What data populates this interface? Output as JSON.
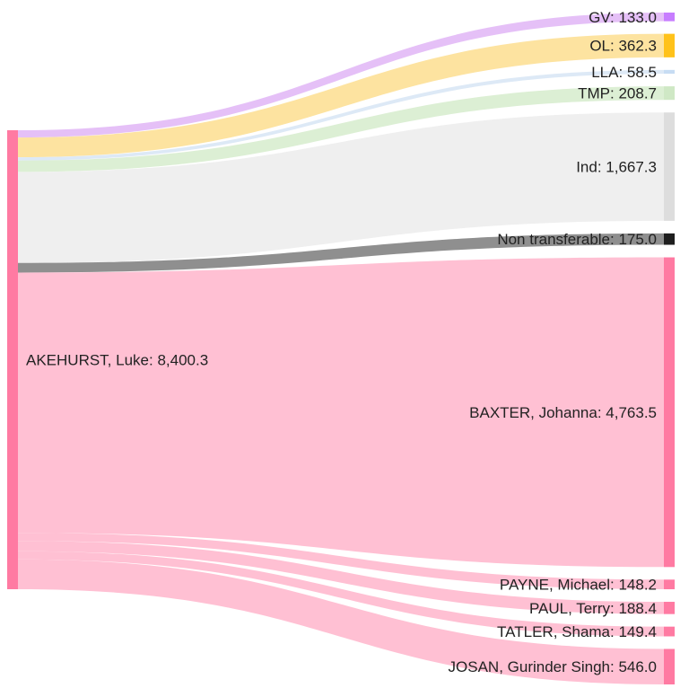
{
  "chart_data": {
    "type": "sankey",
    "title": "",
    "source": {
      "name": "AKEHURST, Luke",
      "value": 8400.3,
      "label": "AKEHURST, Luke: 8,400.3",
      "color": "#ff7aa2"
    },
    "targets": [
      {
        "name": "GV",
        "value": 133.0,
        "label": "GV: 133.0",
        "node_color": "#c77dff",
        "flow_color": "#e5c0f7"
      },
      {
        "name": "OL",
        "value": 362.3,
        "label": "OL: 362.3",
        "node_color": "#ffc21a",
        "flow_color": "#fde3a0"
      },
      {
        "name": "LLA",
        "value": 58.5,
        "label": "LLA: 58.5",
        "node_color": "#c7dcf3",
        "flow_color": "#dde9f6"
      },
      {
        "name": "TMP",
        "value": 208.7,
        "label": "TMP: 208.7",
        "node_color": "#cfe8c5",
        "flow_color": "#dcefd4"
      },
      {
        "name": "Ind",
        "value": 1667.3,
        "label": "Ind: 1,667.3",
        "node_color": "#dddddd",
        "flow_color": "#efefef"
      },
      {
        "name": "Non transferable",
        "value": 175.0,
        "label": "Non transferable: 175.0",
        "node_color": "#1e1e1e",
        "flow_color": "#8f8f8f"
      },
      {
        "name": "BAXTER, Johanna",
        "value": 4763.5,
        "label": "BAXTER, Johanna: 4,763.5",
        "node_color": "#ff7aa2",
        "flow_color": "#ffc0d3"
      },
      {
        "name": "PAYNE, Michael",
        "value": 148.2,
        "label": "PAYNE, Michael: 148.2",
        "node_color": "#ff7aa2",
        "flow_color": "#ffc0d3"
      },
      {
        "name": "PAUL, Terry",
        "value": 188.4,
        "label": "PAUL, Terry: 188.4",
        "node_color": "#ff7aa2",
        "flow_color": "#ffc0d3"
      },
      {
        "name": "TATLER, Shama",
        "value": 149.4,
        "label": "TATLER, Shama: 149.4",
        "node_color": "#ff7aa2",
        "flow_color": "#ffc0d3"
      },
      {
        "name": "JOSAN, Gurinder Singh",
        "value": 546.0,
        "label": "JOSAN, Gurinder Singh: 546.0",
        "node_color": "#ff7aa2",
        "flow_color": "#ffc0d3"
      }
    ]
  }
}
